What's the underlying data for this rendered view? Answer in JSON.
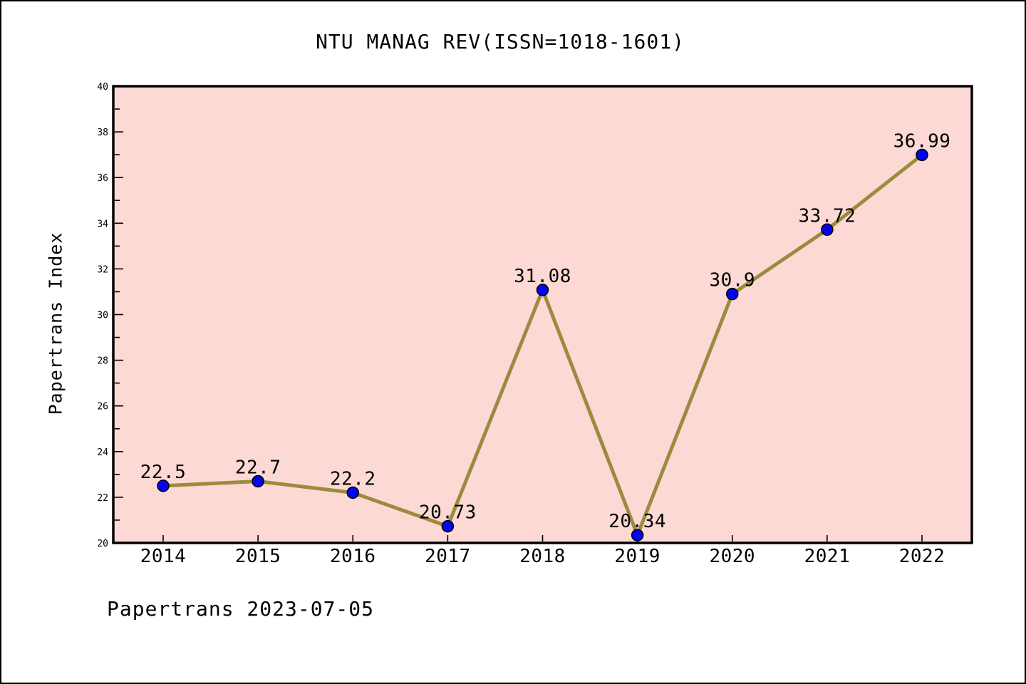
{
  "chart_data": {
    "type": "line",
    "title": "NTU MANAG REV(ISSN=1018-1601)",
    "ylabel": "Papertrans Index",
    "xlabel": "",
    "footer": "Papertrans 2023-07-05",
    "categories": [
      "2014",
      "2015",
      "2016",
      "2017",
      "2018",
      "2019",
      "2020",
      "2021",
      "2022"
    ],
    "series": [
      {
        "name": "Papertrans Index",
        "values": [
          22.5,
          22.7,
          22.2,
          20.73,
          31.08,
          20.34,
          30.9,
          33.72,
          36.99
        ],
        "point_labels": [
          "22.5",
          "22.7",
          "22.2",
          "20.73",
          "31.08",
          "20.34",
          "30.9",
          "33.72",
          "36.99"
        ]
      }
    ],
    "ylim": [
      20,
      40
    ],
    "ytick_major_step": 2,
    "ytick_minor_step": 1,
    "ytick_labels": [
      "20",
      "22",
      "24",
      "26",
      "28",
      "30",
      "32",
      "34",
      "36",
      "38",
      "40"
    ],
    "grid": false,
    "legend_position": "none",
    "colors": {
      "plot_background": "#fcd9d4",
      "figure_background": "#ffffff",
      "line": "#9a8c3d",
      "marker_fill": "#0404f0",
      "marker_edge": "#000000",
      "axis": "#000000",
      "text": "#000000"
    }
  }
}
